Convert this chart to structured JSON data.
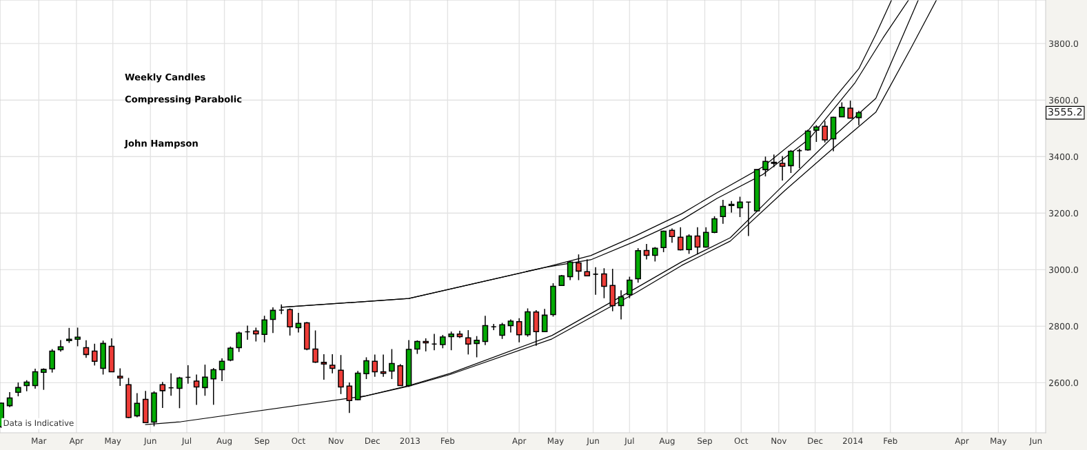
{
  "chart_data": {
    "type": "candlestick",
    "x": [
      "2012-01-30",
      "2012-02-06",
      "2012-02-13",
      "2012-02-20",
      "2012-02-27",
      "2012-03-05",
      "2012-03-12",
      "2012-03-19",
      "2012-03-26",
      "2012-04-02",
      "2012-04-09",
      "2012-04-16",
      "2012-04-23",
      "2012-04-30",
      "2012-05-07",
      "2012-05-14",
      "2012-05-21",
      "2012-05-28",
      "2012-06-04",
      "2012-06-11",
      "2012-06-18",
      "2012-06-25",
      "2012-07-02",
      "2012-07-09",
      "2012-07-16",
      "2012-07-23",
      "2012-07-30",
      "2012-08-06",
      "2012-08-13",
      "2012-08-20",
      "2012-08-27",
      "2012-09-03",
      "2012-09-10",
      "2012-09-17",
      "2012-09-24",
      "2012-10-01",
      "2012-10-08",
      "2012-10-15",
      "2012-10-22",
      "2012-10-29",
      "2012-11-05",
      "2012-11-12",
      "2012-11-19",
      "2012-11-26",
      "2012-12-03",
      "2012-12-10",
      "2012-12-17",
      "2012-12-24",
      "2012-12-31",
      "2013-01-07",
      "2013-01-14",
      "2013-01-21",
      "2013-01-28",
      "2013-02-04",
      "2013-02-11",
      "2013-02-18",
      "2013-02-25",
      "2013-03-04",
      "2013-03-11",
      "2013-03-18",
      "2013-03-25",
      "2013-04-01",
      "2013-04-08",
      "2013-04-15",
      "2013-04-22",
      "2013-04-29",
      "2013-05-06",
      "2013-05-13",
      "2013-05-20",
      "2013-05-27",
      "2013-06-03",
      "2013-06-10",
      "2013-06-17",
      "2013-06-24",
      "2013-07-01",
      "2013-07-08",
      "2013-07-15",
      "2013-07-22",
      "2013-07-29",
      "2013-08-05",
      "2013-08-12",
      "2013-08-19",
      "2013-08-26",
      "2013-09-02",
      "2013-09-09",
      "2013-09-16",
      "2013-09-23",
      "2013-09-30",
      "2013-10-07",
      "2013-10-14",
      "2013-10-21",
      "2013-10-28",
      "2013-11-04",
      "2013-11-11",
      "2013-11-18",
      "2013-11-25",
      "2013-12-02",
      "2013-12-09",
      "2013-12-16",
      "2013-12-23",
      "2013-12-30",
      "2014-01-06"
    ],
    "ohlc": [
      [
        2445,
        2530,
        2440,
        2528
      ],
      [
        2519,
        2567,
        2514,
        2546
      ],
      [
        2566,
        2601,
        2552,
        2583
      ],
      [
        2590,
        2609,
        2570,
        2602
      ],
      [
        2590,
        2650,
        2579,
        2639
      ],
      [
        2637,
        2651,
        2575,
        2647
      ],
      [
        2649,
        2719,
        2636,
        2712
      ],
      [
        2717,
        2751,
        2710,
        2727
      ],
      [
        2749,
        2794,
        2741,
        2754
      ],
      [
        2754,
        2795,
        2729,
        2761
      ],
      [
        2724,
        2750,
        2688,
        2700
      ],
      [
        2712,
        2738,
        2661,
        2676
      ],
      [
        2651,
        2749,
        2629,
        2739
      ],
      [
        2729,
        2757,
        2639,
        2639
      ],
      [
        2623,
        2651,
        2589,
        2617
      ],
      [
        2593,
        2617,
        2475,
        2477
      ],
      [
        2483,
        2563,
        2478,
        2527
      ],
      [
        2541,
        2571,
        2459,
        2459
      ],
      [
        2461,
        2570,
        2446,
        2564
      ],
      [
        2593,
        2603,
        2511,
        2572
      ],
      [
        2582,
        2633,
        2554,
        2582
      ],
      [
        2580,
        2621,
        2510,
        2617
      ],
      [
        2619,
        2662,
        2597,
        2619
      ],
      [
        2606,
        2629,
        2522,
        2585
      ],
      [
        2583,
        2664,
        2554,
        2620
      ],
      [
        2614,
        2652,
        2522,
        2646
      ],
      [
        2646,
        2686,
        2606,
        2676
      ],
      [
        2680,
        2728,
        2676,
        2722
      ],
      [
        2724,
        2781,
        2709,
        2776
      ],
      [
        2780,
        2802,
        2752,
        2780
      ],
      [
        2783,
        2795,
        2746,
        2773
      ],
      [
        2771,
        2837,
        2743,
        2822
      ],
      [
        2824,
        2867,
        2776,
        2856
      ],
      [
        2857,
        2877,
        2843,
        2857
      ],
      [
        2859,
        2863,
        2767,
        2798
      ],
      [
        2795,
        2847,
        2778,
        2810
      ],
      [
        2812,
        2815,
        2715,
        2719
      ],
      [
        2719,
        2785,
        2670,
        2673
      ],
      [
        2672,
        2701,
        2611,
        2666
      ],
      [
        2662,
        2701,
        2633,
        2651
      ],
      [
        2644,
        2698,
        2560,
        2585
      ],
      [
        2588,
        2601,
        2493,
        2537
      ],
      [
        2540,
        2642,
        2538,
        2634
      ],
      [
        2632,
        2690,
        2613,
        2678
      ],
      [
        2676,
        2700,
        2621,
        2639
      ],
      [
        2639,
        2700,
        2621,
        2633
      ],
      [
        2641,
        2719,
        2613,
        2668
      ],
      [
        2660,
        2666,
        2589,
        2590
      ],
      [
        2590,
        2751,
        2585,
        2718
      ],
      [
        2719,
        2750,
        2702,
        2746
      ],
      [
        2746,
        2757,
        2711,
        2741
      ],
      [
        2737,
        2773,
        2715,
        2737
      ],
      [
        2735,
        2769,
        2722,
        2762
      ],
      [
        2763,
        2781,
        2715,
        2772
      ],
      [
        2772,
        2784,
        2758,
        2763
      ],
      [
        2759,
        2786,
        2700,
        2737
      ],
      [
        2739,
        2765,
        2690,
        2750
      ],
      [
        2746,
        2837,
        2733,
        2802
      ],
      [
        2798,
        2808,
        2786,
        2798
      ],
      [
        2768,
        2812,
        2755,
        2805
      ],
      [
        2802,
        2824,
        2778,
        2818
      ],
      [
        2816,
        2828,
        2743,
        2770
      ],
      [
        2770,
        2863,
        2763,
        2851
      ],
      [
        2850,
        2857,
        2731,
        2781
      ],
      [
        2781,
        2861,
        2780,
        2839
      ],
      [
        2841,
        2952,
        2834,
        2941
      ],
      [
        2944,
        2981,
        2942,
        2978
      ],
      [
        2975,
        3032,
        2963,
        3027
      ],
      [
        3024,
        3054,
        2963,
        2995
      ],
      [
        2993,
        3037,
        2977,
        2978
      ],
      [
        2984,
        3009,
        2911,
        2984
      ],
      [
        2985,
        3005,
        2899,
        2941
      ],
      [
        2944,
        3003,
        2853,
        2873
      ],
      [
        2873,
        2927,
        2824,
        2904
      ],
      [
        2912,
        2975,
        2899,
        2963
      ],
      [
        2968,
        3076,
        2954,
        3067
      ],
      [
        3068,
        3091,
        3036,
        3051
      ],
      [
        3051,
        3080,
        3029,
        3076
      ],
      [
        3078,
        3138,
        3062,
        3136
      ],
      [
        3139,
        3146,
        3095,
        3117
      ],
      [
        3115,
        3150,
        3068,
        3070
      ],
      [
        3071,
        3125,
        3056,
        3119
      ],
      [
        3119,
        3150,
        3054,
        3080
      ],
      [
        3080,
        3150,
        3078,
        3132
      ],
      [
        3132,
        3189,
        3129,
        3180
      ],
      [
        3188,
        3247,
        3162,
        3224
      ],
      [
        3227,
        3243,
        3202,
        3231
      ],
      [
        3219,
        3258,
        3186,
        3239
      ],
      [
        3239,
        3240,
        3119,
        3239
      ],
      [
        3208,
        3355,
        3205,
        3354
      ],
      [
        3354,
        3400,
        3330,
        3383
      ],
      [
        3380,
        3407,
        3363,
        3376
      ],
      [
        3376,
        3402,
        3315,
        3366
      ],
      [
        3368,
        3423,
        3342,
        3419
      ],
      [
        3421,
        3428,
        3359,
        3421
      ],
      [
        3424,
        3495,
        3421,
        3490
      ],
      [
        3493,
        3511,
        3452,
        3505
      ],
      [
        3507,
        3526,
        3450,
        3459
      ],
      [
        3463,
        3541,
        3419,
        3539
      ],
      [
        3541,
        3592,
        3541,
        3574
      ],
      [
        3571,
        3598,
        3535,
        3536
      ],
      [
        3538,
        3562,
        3511,
        3555.2
      ]
    ],
    "colors": [
      "#03aa03",
      "#03aa03",
      "#03aa03",
      "#03aa03",
      "#03aa03",
      "#03aa03",
      "#03aa03",
      "#03aa03",
      "#03aa03",
      "#03aa03",
      "#ee3d38",
      "#ee3d38",
      "#03aa03",
      "#ee3d38",
      "#ee3d38",
      "#ee3d38",
      "#03aa03",
      "#ee3d38",
      "#03aa03",
      "#ee3d38",
      "#000000",
      "#03aa03",
      "#000000",
      "#ee3d38",
      "#03aa03",
      "#03aa03",
      "#03aa03",
      "#03aa03",
      "#03aa03",
      "#000000",
      "#ee3d38",
      "#03aa03",
      "#03aa03",
      "#000000",
      "#ee3d38",
      "#03aa03",
      "#ee3d38",
      "#ee3d38",
      "#ee3d38",
      "#ee3d38",
      "#ee3d38",
      "#ee3d38",
      "#03aa03",
      "#03aa03",
      "#ee3d38",
      "#ee3d38",
      "#03aa03",
      "#ee3d38",
      "#03aa03",
      "#03aa03",
      "#ee3d38",
      "#000000",
      "#03aa03",
      "#03aa03",
      "#ee3d38",
      "#ee3d38",
      "#03aa03",
      "#03aa03",
      "#000000",
      "#03aa03",
      "#03aa03",
      "#ee3d38",
      "#03aa03",
      "#ee3d38",
      "#03aa03",
      "#03aa03",
      "#03aa03",
      "#03aa03",
      "#ee3d38",
      "#ee3d38",
      "#000000",
      "#ee3d38",
      "#ee3d38",
      "#03aa03",
      "#03aa03",
      "#03aa03",
      "#ee3d38",
      "#03aa03",
      "#03aa03",
      "#ee3d38",
      "#ee3d38",
      "#03aa03",
      "#ee3d38",
      "#03aa03",
      "#03aa03",
      "#03aa03",
      "#03aa03",
      "#03aa03",
      "#000000",
      "#03aa03",
      "#03aa03",
      "#ee3d38",
      "#ee3d38",
      "#03aa03",
      "#000000",
      "#03aa03",
      "#03aa03",
      "#ee3d38",
      "#03aa03",
      "#03aa03",
      "#ee3d38",
      "#03aa03"
    ],
    "series": [
      {
        "type": "line",
        "color": "#000000",
        "x": [
          "2012-09-17",
          "2012-12-31",
          "2013-04-22",
          "2013-05-30",
          "2013-07-06",
          "2013-08-13",
          "2013-09-11",
          "2013-10-19",
          "2013-11-26",
          "2013-12-18",
          "2014-01-06",
          "2014-01-20",
          "2014-02-02"
        ],
        "values": [
          2867,
          2898,
          3008,
          3050,
          3120,
          3198,
          3272,
          3364,
          3496,
          3613,
          3711,
          3832,
          3954
        ]
      },
      {
        "type": "line",
        "color": "#000000",
        "x": [
          "2012-09-17",
          "2012-12-31",
          "2013-04-22",
          "2013-05-30",
          "2013-07-06",
          "2013-08-13",
          "2013-09-11",
          "2013-10-19",
          "2013-11-26",
          "2014-01-03",
          "2014-01-26",
          "2014-02-16"
        ],
        "values": [
          2867,
          2898,
          3008,
          3035,
          3101,
          3176,
          3252,
          3337,
          3462,
          3662,
          3820,
          3954
        ]
      },
      {
        "type": "line",
        "color": "#000000",
        "x": [
          "2012-05-28",
          "2012-06-26",
          "2012-11-26",
          "2012-12-31",
          "2013-02-03",
          "2013-04-28",
          "2013-07-06",
          "2013-08-13",
          "2013-09-22",
          "2013-11-06",
          "2013-12-15",
          "2014-01-20",
          "2014-02-24"
        ],
        "values": [
          2452,
          2462,
          2554,
          2590,
          2633,
          2767,
          2934,
          3028,
          3113,
          3304,
          3467,
          3606,
          3954
        ]
      },
      {
        "type": "line",
        "color": "#000000",
        "x": [
          "2012-11-17",
          "2012-12-31",
          "2013-02-03",
          "2013-04-28",
          "2013-07-06",
          "2013-08-13",
          "2013-09-22",
          "2013-11-06",
          "2013-12-15",
          "2014-01-20",
          "2014-02-18",
          "2014-03-11"
        ],
        "values": [
          2545,
          2588,
          2629,
          2755,
          2918,
          3015,
          3101,
          3280,
          3426,
          3557,
          3784,
          3954
        ]
      }
    ],
    "xlim": [
      "2012-01-29",
      "2014-06-09"
    ],
    "xticks": [
      {
        "value": "2012-03-01",
        "label": "Mar"
      },
      {
        "value": "2012-04-01",
        "label": "Apr"
      },
      {
        "value": "2012-05-01",
        "label": "May"
      },
      {
        "value": "2012-06-01",
        "label": "Jun"
      },
      {
        "value": "2012-07-01",
        "label": "Jul"
      },
      {
        "value": "2012-08-01",
        "label": "Aug"
      },
      {
        "value": "2012-09-01",
        "label": "Sep"
      },
      {
        "value": "2012-10-01",
        "label": "Oct"
      },
      {
        "value": "2012-11-01",
        "label": "Nov"
      },
      {
        "value": "2012-12-01",
        "label": "Dec"
      },
      {
        "value": "2013-01-01",
        "label": "2013"
      },
      {
        "value": "2013-02-01",
        "label": "Feb"
      },
      {
        "value": "2013-04-01",
        "label": "Apr"
      },
      {
        "value": "2013-05-01",
        "label": "May"
      },
      {
        "value": "2013-06-01",
        "label": "Jun"
      },
      {
        "value": "2013-07-01",
        "label": "Jul"
      },
      {
        "value": "2013-08-01",
        "label": "Aug"
      },
      {
        "value": "2013-09-01",
        "label": "Sep"
      },
      {
        "value": "2013-10-01",
        "label": "Oct"
      },
      {
        "value": "2013-11-01",
        "label": "Nov"
      },
      {
        "value": "2013-12-01",
        "label": "Dec"
      },
      {
        "value": "2014-01-01",
        "label": "2014"
      },
      {
        "value": "2014-02-01",
        "label": "Feb"
      },
      {
        "value": "2014-04-01",
        "label": "Apr"
      },
      {
        "value": "2014-05-01",
        "label": "May"
      },
      {
        "value": "2014-06-01",
        "label": "Jun"
      }
    ],
    "ylim": [
      2423,
      3954
    ],
    "yticks": [
      {
        "value": 2600,
        "label": "2600.0"
      },
      {
        "value": 2800,
        "label": "2800.0"
      },
      {
        "value": 3000,
        "label": "3000.0"
      },
      {
        "value": 3200,
        "label": "3200.0"
      },
      {
        "value": 3400,
        "label": "3400.0"
      },
      {
        "value": 3600,
        "label": "3600.0"
      },
      {
        "value": 3800,
        "label": "3800.0"
      }
    ],
    "grid": true,
    "annotations": [
      "Weekly Candles",
      "Compressing Parabolic",
      "John Hampson",
      "Data is Indicative",
      "3555.2"
    ]
  }
}
